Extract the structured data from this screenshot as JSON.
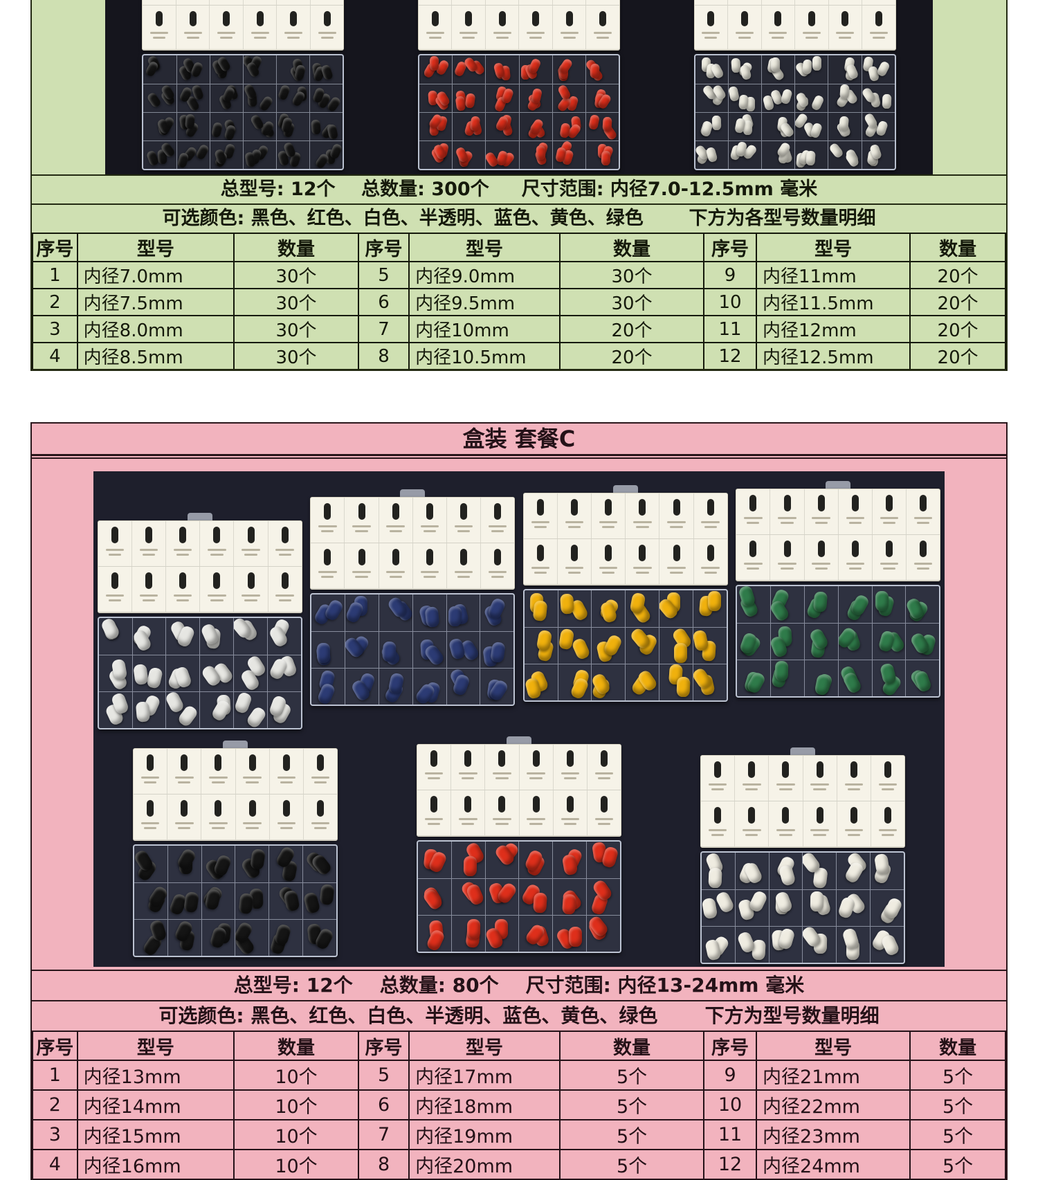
{
  "section_a": {
    "bg_color": "#cfe0b2",
    "photo": {
      "bg_color": "#15151d",
      "boxes": [
        {
          "name": "black",
          "color": "#151515"
        },
        {
          "name": "red",
          "color": "#de2f1b"
        },
        {
          "name": "white",
          "color": "#edebdf"
        }
      ]
    },
    "summary_line1": "总型号: 12个    总数量: 300个     尺寸范围: 内径7.0-12.5mm 毫米",
    "summary_line2": "可选颜色: 黑色、红色、白色、半透明、蓝色、黄色、绿色       下方为各型号数量明细",
    "table": {
      "headers": [
        "序号",
        "型号",
        "数量",
        "序号",
        "型号",
        "数量",
        "序号",
        "型号",
        "数量"
      ],
      "rows": [
        [
          "1",
          "内径7.0mm",
          "30个",
          "5",
          "内径9.0mm",
          "30个",
          "9",
          "内径11mm",
          "20个"
        ],
        [
          "2",
          "内径7.5mm",
          "30个",
          "6",
          "内径9.5mm",
          "30个",
          "10",
          "内径11.5mm",
          "20个"
        ],
        [
          "3",
          "内径8.0mm",
          "30个",
          "7",
          "内径10mm",
          "20个",
          "11",
          "内径12mm",
          "20个"
        ],
        [
          "4",
          "内径8.5mm",
          "30个",
          "8",
          "内径10.5mm",
          "20个",
          "12",
          "内径12.5mm",
          "20个"
        ]
      ]
    }
  },
  "section_b": {
    "bg_color": "#f2b3be",
    "title": "盒装 套餐C",
    "photo": {
      "bg_color": "#1e1f2c",
      "rows": [
        [
          {
            "name": "translucent-white",
            "color": "#e6e6e2"
          },
          {
            "name": "blue",
            "color": "#2c3b74"
          },
          {
            "name": "yellow",
            "color": "#f0b10d"
          },
          {
            "name": "green",
            "color": "#2f7b4a"
          }
        ],
        [
          {
            "name": "black",
            "color": "#151515"
          },
          {
            "name": "red",
            "color": "#de2f1b"
          },
          {
            "name": "white",
            "color": "#efece1"
          }
        ]
      ]
    },
    "summary_line1": "总型号: 12个    总数量: 80个    尺寸范围: 内径13-24mm 毫米",
    "summary_line2": "可选颜色: 黑色、红色、白色、半透明、蓝色、黄色、绿色       下方为型号数量明细",
    "table": {
      "headers": [
        "序号",
        "型号",
        "数量",
        "序号",
        "型号",
        "数量",
        "序号",
        "型号",
        "数量"
      ],
      "rows": [
        [
          "1",
          "内径13mm",
          "10个",
          "5",
          "内径17mm",
          "5个",
          "9",
          "内径21mm",
          "5个"
        ],
        [
          "2",
          "内径14mm",
          "10个",
          "6",
          "内径18mm",
          "5个",
          "10",
          "内径22mm",
          "5个"
        ],
        [
          "3",
          "内径15mm",
          "10个",
          "7",
          "内径19mm",
          "5个",
          "11",
          "内径23mm",
          "5个"
        ],
        [
          "4",
          "内径16mm",
          "10个",
          "8",
          "内径20mm",
          "5个",
          "12",
          "内径24mm",
          "5个"
        ]
      ]
    }
  }
}
